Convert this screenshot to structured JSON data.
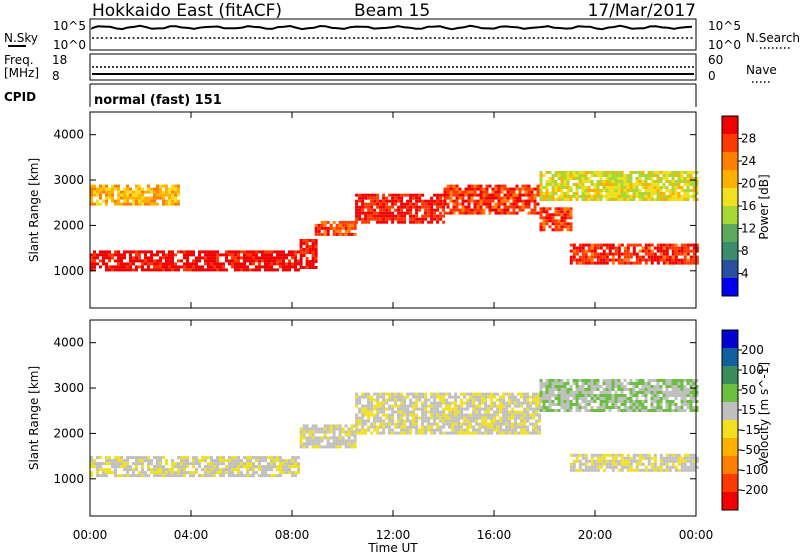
{
  "header": {
    "title": "Hokkaido East (fitACF)",
    "beam": "Beam 15",
    "date": "17/Mar/2017"
  },
  "noise_panel": {
    "left_label": "N.Sky",
    "right_label": "N.Search",
    "left_ticks": [
      "10^5",
      "10^0"
    ],
    "right_ticks": [
      "10^5",
      "10^0"
    ]
  },
  "freq_panel": {
    "left_label_line1": "Freq.",
    "left_label_line2": "[MHz]",
    "left_ticks": [
      "18",
      "8"
    ],
    "right_label": "Nave",
    "right_ticks": [
      "60",
      "0"
    ]
  },
  "cpid_panel": {
    "label": "CPID",
    "text": "normal (fast) 151"
  },
  "chart_data": [
    {
      "type": "heatmap",
      "parameter": "Power",
      "ylabel": "Slant Range [km]",
      "ylim": [
        180,
        4500
      ],
      "yticks": [
        1000,
        2000,
        3000,
        4000
      ],
      "xlim": [
        0,
        24
      ],
      "xticks": [
        "00:00",
        "04:00",
        "08:00",
        "12:00",
        "16:00",
        "20:00",
        "00:00"
      ],
      "colorbar": {
        "label": "Power [dB]",
        "ticks": [
          "28",
          "24",
          "20",
          "16",
          "12",
          "8",
          "4"
        ],
        "colors": [
          "#f00000",
          "#ff3a00",
          "#ff7f00",
          "#ffb000",
          "#f0e020",
          "#a8d838",
          "#5ca85c",
          "#3a8c6a",
          "#2a4fa0",
          "#0000f0"
        ]
      },
      "regions": [
        {
          "t": [
            0.0,
            8.3
          ],
          "r": [
            1050,
            1450
          ],
          "value": 30
        },
        {
          "t": [
            8.3,
            8.9
          ],
          "r": [
            1100,
            1700
          ],
          "value": 30
        },
        {
          "t": [
            8.9,
            10.5
          ],
          "r": [
            1800,
            2100
          ],
          "value": 26
        },
        {
          "t": [
            10.5,
            14.0
          ],
          "r": [
            2050,
            2700
          ],
          "value": 29
        },
        {
          "t": [
            14.0,
            17.8
          ],
          "r": [
            2300,
            2900
          ],
          "value": 27
        },
        {
          "t": [
            17.8,
            19.0
          ],
          "r": [
            1900,
            2400
          ],
          "value": 26
        },
        {
          "t": [
            19.0,
            24.0
          ],
          "r": [
            1200,
            1600
          ],
          "value": 28
        },
        {
          "t": [
            0.0,
            3.5
          ],
          "r": [
            2500,
            2900
          ],
          "value": 20
        },
        {
          "t": [
            17.8,
            24.0
          ],
          "r": [
            2600,
            3200
          ],
          "value": 16
        }
      ]
    },
    {
      "type": "heatmap",
      "parameter": "Velocity",
      "ylabel": "Slant Range [km]",
      "ylim": [
        180,
        4500
      ],
      "yticks": [
        1000,
        2000,
        3000,
        4000
      ],
      "xlim": [
        0,
        24
      ],
      "xticks": [
        "00:00",
        "04:00",
        "08:00",
        "12:00",
        "16:00",
        "20:00",
        "00:00"
      ],
      "xlabel": "Time UT",
      "colorbar": {
        "label": "Velocity [m s^-1]",
        "ticks": [
          "200",
          "100",
          "50",
          "15",
          "-15",
          "-50",
          "-100",
          "-200"
        ],
        "colors": [
          "#0000d0",
          "#1060a0",
          "#3a8c5a",
          "#6cc040",
          "#c0c0c0",
          "#f0e020",
          "#ffb000",
          "#ff7f00",
          "#ff3a00",
          "#f00000"
        ]
      },
      "regions": [
        {
          "t": [
            0.0,
            8.3
          ],
          "r": [
            1100,
            1500
          ],
          "value": 0
        },
        {
          "t": [
            8.3,
            10.5
          ],
          "r": [
            1700,
            2200
          ],
          "value": 0
        },
        {
          "t": [
            10.5,
            17.8
          ],
          "r": [
            2000,
            2900
          ],
          "value": 0
        },
        {
          "t": [
            19.0,
            24.0
          ],
          "r": [
            1200,
            1550
          ],
          "value": 0
        },
        {
          "t": [
            17.8,
            24.0
          ],
          "r": [
            2500,
            3200
          ],
          "value": 40
        }
      ]
    }
  ],
  "colors": {
    "background": "#ffffff",
    "axes": "#000000"
  }
}
